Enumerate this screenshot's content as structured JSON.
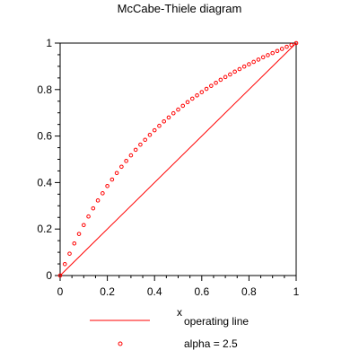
{
  "chart_data": {
    "type": "line",
    "title": "McCabe-Thiele diagram",
    "xlabel": "x",
    "ylabel": "",
    "xlim": [
      0,
      1
    ],
    "ylim": [
      0,
      1
    ],
    "xticks": [
      "0",
      "0.2",
      "0.4",
      "0.6",
      "0.8",
      "1"
    ],
    "yticks": [
      "0",
      "0.2",
      "0.4",
      "0.6",
      "0.8",
      "1"
    ],
    "xtick_values": [
      0,
      0.2,
      0.4,
      0.6,
      0.8,
      1
    ],
    "ytick_values": [
      0,
      0.2,
      0.4,
      0.6,
      0.8,
      1
    ],
    "grid": false,
    "legend_position": "bottom",
    "series": [
      {
        "name": "operating line",
        "style": "line",
        "color": "#ff0000",
        "x": [
          0,
          1
        ],
        "y": [
          0,
          1
        ]
      },
      {
        "name": "alpha = 2.5",
        "style": "circles",
        "color": "#ff0000",
        "alpha": 2.5,
        "x": [
          0,
          0.02,
          0.04,
          0.06,
          0.08,
          0.1,
          0.12,
          0.14,
          0.16,
          0.18,
          0.2,
          0.22,
          0.24,
          0.26,
          0.28,
          0.3,
          0.32,
          0.34,
          0.36,
          0.38,
          0.4,
          0.42,
          0.44,
          0.46,
          0.48,
          0.5,
          0.52,
          0.54,
          0.56,
          0.58,
          0.6,
          0.62,
          0.64,
          0.66,
          0.68,
          0.7,
          0.72,
          0.74,
          0.76,
          0.78,
          0.8,
          0.82,
          0.84,
          0.86,
          0.88,
          0.9,
          0.92,
          0.94,
          0.96,
          0.98,
          1
        ],
        "y": [
          0,
          0.049,
          0.094,
          0.138,
          0.179,
          0.217,
          0.254,
          0.289,
          0.323,
          0.354,
          0.385,
          0.413,
          0.441,
          0.468,
          0.493,
          0.517,
          0.541,
          0.563,
          0.584,
          0.605,
          0.625,
          0.644,
          0.663,
          0.68,
          0.698,
          0.714,
          0.73,
          0.746,
          0.761,
          0.775,
          0.789,
          0.803,
          0.816,
          0.829,
          0.842,
          0.854,
          0.865,
          0.877,
          0.888,
          0.899,
          0.909,
          0.919,
          0.929,
          0.939,
          0.948,
          0.957,
          0.966,
          0.975,
          0.984,
          0.992,
          1
        ]
      }
    ]
  }
}
